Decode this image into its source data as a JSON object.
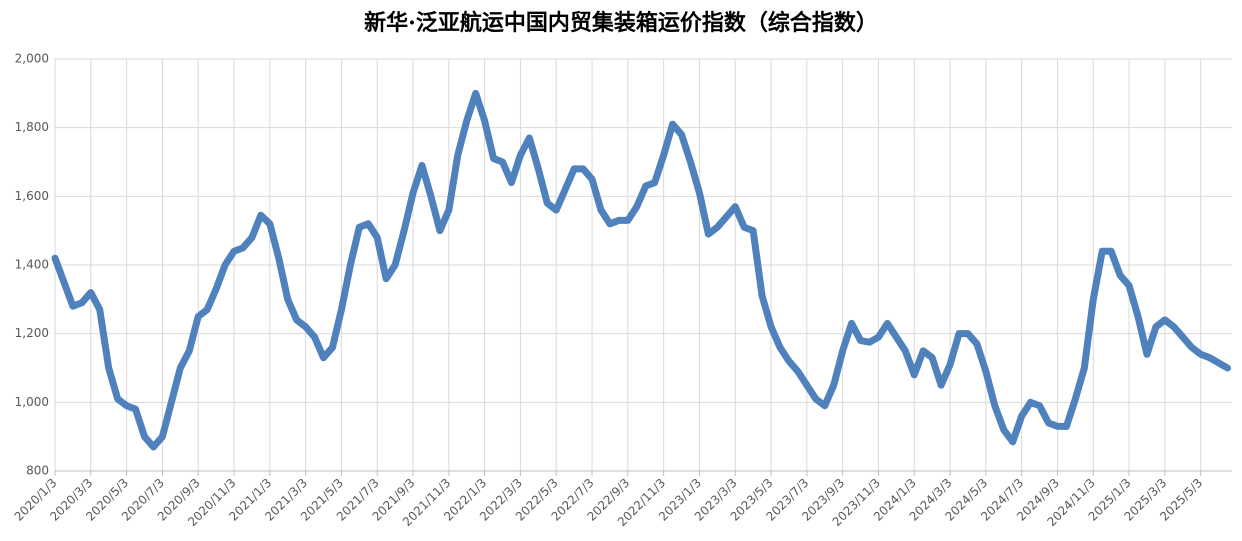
{
  "chart_data": {
    "type": "line",
    "title": "新华·泛亚航运中国内贸集装箱运价指数（综合指数）",
    "categories": [
      "2020/1/3",
      null,
      null,
      null,
      "2020/3/3",
      null,
      null,
      null,
      "2020/5/3",
      null,
      null,
      null,
      "2020/7/3",
      null,
      null,
      null,
      "2020/9/3",
      null,
      null,
      null,
      "2020/11/3",
      null,
      null,
      null,
      "2021/1/3",
      null,
      null,
      null,
      "2021/3/3",
      null,
      null,
      null,
      "2021/5/3",
      null,
      null,
      null,
      "2021/7/3",
      null,
      null,
      null,
      "2021/9/3",
      null,
      null,
      null,
      "2021/11/3",
      null,
      null,
      null,
      "2022/1/3",
      null,
      null,
      null,
      "2022/3/3",
      null,
      null,
      null,
      "2022/5/3",
      null,
      null,
      null,
      "2022/7/3",
      null,
      null,
      null,
      "2022/9/3",
      null,
      null,
      null,
      "2022/11/3",
      null,
      null,
      null,
      "2023/1/3",
      null,
      null,
      null,
      "2023/3/3",
      null,
      null,
      null,
      "2023/5/3",
      null,
      null,
      null,
      "2023/7/3",
      null,
      null,
      null,
      "2023/9/3",
      null,
      null,
      null,
      "2023/11/3",
      null,
      null,
      null,
      "2024/1/3",
      null,
      null,
      null,
      "2024/3/3",
      null,
      null,
      null,
      "2024/5/3",
      null,
      null,
      null,
      "2024/7/3",
      null,
      null,
      null,
      "2024/9/3",
      null,
      null,
      null,
      "2024/11/3",
      null,
      null,
      null,
      "2025/1/3",
      null,
      null,
      null,
      "2025/3/3",
      null,
      null,
      null,
      "2025/5/3",
      null,
      null,
      null
    ],
    "series": [
      {
        "color": "#4f81bd",
        "values": [
          1420,
          1350,
          1280,
          1290,
          1320,
          1270,
          1100,
          1010,
          990,
          980,
          900,
          870,
          900,
          1000,
          1100,
          1150,
          1250,
          1270,
          1330,
          1400,
          1440,
          1450,
          1480,
          1545,
          1520,
          1420,
          1300,
          1240,
          1220,
          1190,
          1130,
          1160,
          1270,
          1400,
          1510,
          1520,
          1480,
          1360,
          1400,
          1500,
          1610,
          1690,
          1600,
          1500,
          1560,
          1720,
          1820,
          1900,
          1820,
          1710,
          1700,
          1640,
          1720,
          1770,
          1680,
          1580,
          1560,
          1620,
          1680,
          1680,
          1650,
          1560,
          1520,
          1530,
          1530,
          1570,
          1630,
          1640,
          1720,
          1810,
          1780,
          1700,
          1610,
          1490,
          1510,
          1540,
          1570,
          1510,
          1500,
          1310,
          1220,
          1160,
          1120,
          1090,
          1050,
          1010,
          990,
          1050,
          1150,
          1230,
          1180,
          1175,
          1190,
          1230,
          1190,
          1150,
          1080,
          1150,
          1130,
          1050,
          1110,
          1200,
          1200,
          1170,
          1090,
          990,
          920,
          885,
          960,
          1000,
          990,
          940,
          930,
          930,
          1010,
          1100,
          1300,
          1440,
          1440,
          1370,
          1340,
          1250,
          1140,
          1220,
          1240,
          1220,
          1190,
          1160,
          1140,
          1130,
          1115,
          1100
        ]
      }
    ],
    "ylim": [
      800,
      2000
    ],
    "yticks": [
      800,
      {
        "value": 1000,
        "label": "1,000"
      },
      {
        "value": 1200,
        "label": "1,200"
      },
      {
        "value": 1400,
        "label": "1,400"
      },
      {
        "value": 1600,
        "label": "1,600"
      },
      {
        "value": 1800,
        "label": "1,800"
      },
      {
        "value": 2000,
        "label": "2,000"
      }
    ],
    "grid": true
  }
}
